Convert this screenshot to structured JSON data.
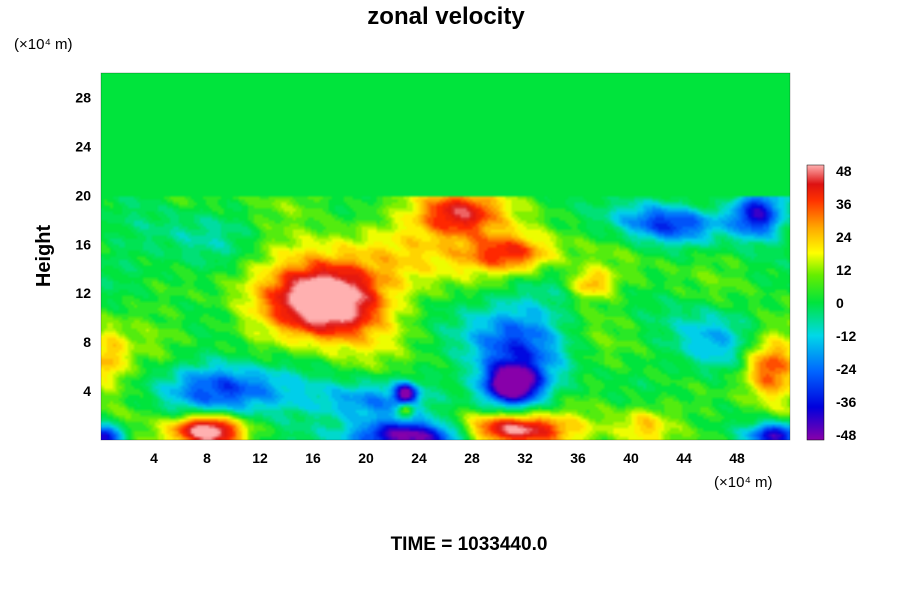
{
  "chart_data": {
    "type": "heatmap",
    "title": "zonal velocity",
    "ylabel": "Height",
    "x_unit_label": "(×10⁴ m)",
    "y_unit_label": "(×10⁴ m)",
    "footer": "TIME = 1033440.0",
    "xlim": [
      0,
      52
    ],
    "ylim": [
      0,
      30
    ],
    "x_ticks": [
      4,
      8,
      12,
      16,
      20,
      24,
      28,
      32,
      36,
      40,
      44,
      48
    ],
    "y_ticks": [
      4,
      8,
      12,
      16,
      20,
      24,
      28
    ],
    "colorbar": {
      "min": -48,
      "max": 48,
      "ticks": [
        48,
        36,
        24,
        12,
        0,
        -12,
        -24,
        -36,
        -48
      ]
    },
    "upper_layer": {
      "y_range": [
        20,
        30
      ],
      "value": 0
    },
    "features": [
      {
        "x": 17,
        "y": 11.5,
        "sx": 3.4,
        "sy": 2.6,
        "value": 52
      },
      {
        "x": 17,
        "y": 12,
        "sx": 6,
        "sy": 5,
        "value": 22
      },
      {
        "x": 8,
        "y": 0.8,
        "sx": 2.6,
        "sy": 1.3,
        "value": 60
      },
      {
        "x": 31,
        "y": 0.8,
        "sx": 4,
        "sy": 1.3,
        "value": 60
      },
      {
        "x": 27,
        "y": 18.6,
        "sx": 3,
        "sy": 1.8,
        "value": 38
      },
      {
        "x": 31,
        "y": 15.2,
        "sx": 3.5,
        "sy": 1.6,
        "value": 34
      },
      {
        "x": 26,
        "y": 16,
        "sx": 4,
        "sy": 3,
        "value": 15
      },
      {
        "x": 37,
        "y": 12.8,
        "sx": 1.6,
        "sy": 1.2,
        "value": 24
      },
      {
        "x": 50.5,
        "y": 6,
        "sx": 2,
        "sy": 2.5,
        "value": 36
      },
      {
        "x": 0.5,
        "y": 6.5,
        "sx": 1.5,
        "sy": 2.5,
        "value": 24
      },
      {
        "x": 41,
        "y": 1.2,
        "sx": 2,
        "sy": 1.5,
        "value": 20
      },
      {
        "x": 44,
        "y": 19,
        "sx": 3,
        "sy": 1.2,
        "value": 14
      },
      {
        "x": 10,
        "y": 4.2,
        "sx": 5,
        "sy": 2.2,
        "value": -38
      },
      {
        "x": 20,
        "y": 3,
        "sx": 4,
        "sy": 1.8,
        "value": -28
      },
      {
        "x": 31,
        "y": 7.5,
        "sx": 4,
        "sy": 4.5,
        "value": -34
      },
      {
        "x": 31,
        "y": 4.5,
        "sx": 2,
        "sy": 1.5,
        "value": -55
      },
      {
        "x": 43,
        "y": 18,
        "sx": 4.5,
        "sy": 1.8,
        "value": -38
      },
      {
        "x": 49.5,
        "y": 18.5,
        "sx": 2,
        "sy": 2,
        "value": -44
      },
      {
        "x": 46,
        "y": 8,
        "sx": 3,
        "sy": 3,
        "value": -22
      },
      {
        "x": 23.5,
        "y": 0.3,
        "sx": 5,
        "sy": 1.2,
        "value": -55
      },
      {
        "x": 0,
        "y": 0.3,
        "sx": 1.8,
        "sy": 1,
        "value": -48
      },
      {
        "x": 51,
        "y": 0.4,
        "sx": 2,
        "sy": 1,
        "value": -48
      },
      {
        "x": 6,
        "y": 16,
        "sx": 5,
        "sy": 3,
        "value": -12
      },
      {
        "x": 16,
        "y": 17.5,
        "sx": 4,
        "sy": 1.5,
        "value": -6
      },
      {
        "x": 23,
        "y": 3.8,
        "sx": 0.8,
        "sy": 0.8,
        "value": -45
      },
      {
        "x": 23,
        "y": 2.5,
        "sx": 0.6,
        "sy": 0.6,
        "value": 30
      }
    ]
  }
}
